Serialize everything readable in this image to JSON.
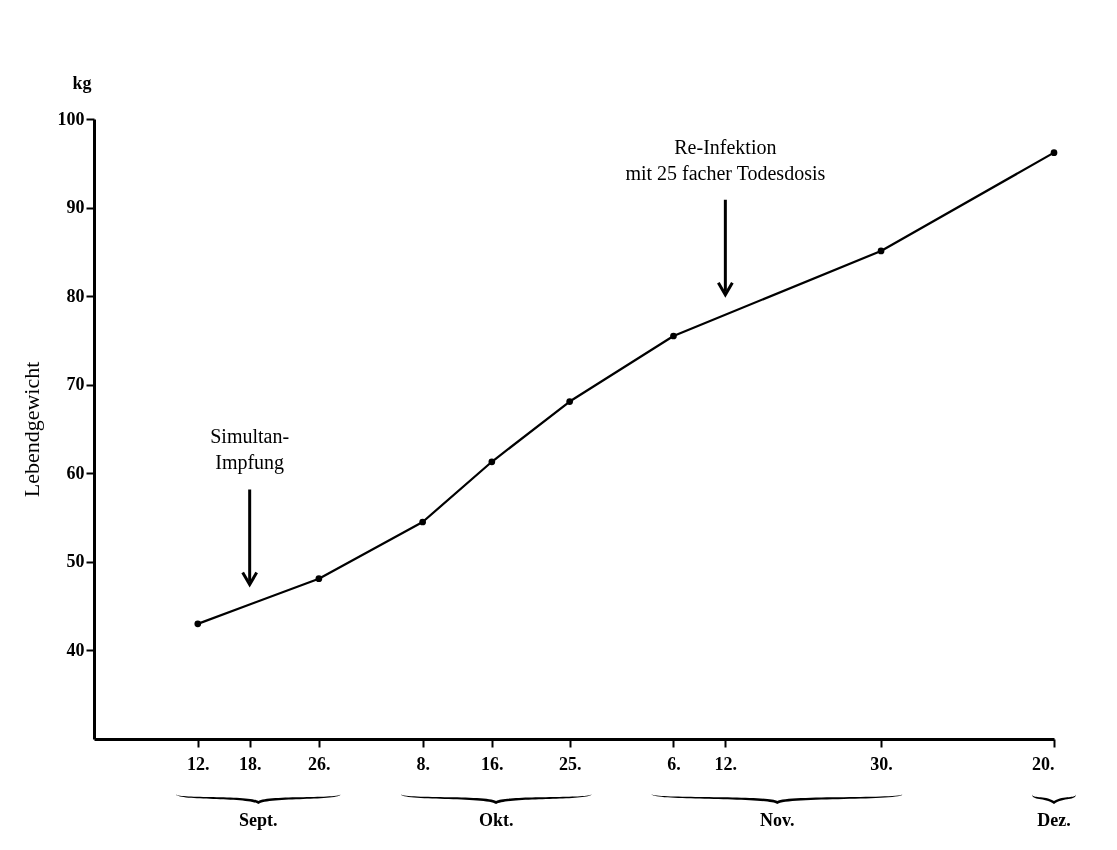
{
  "chart_data": {
    "type": "line",
    "ylabel": "Lebendgewicht",
    "x": [
      "--09-12",
      "--09-26",
      "--10-08",
      "--10-16",
      "--10-25",
      "--11-06",
      "--11-30",
      "--12-20"
    ],
    "series": [
      {
        "color": "#000000",
        "values": [
          43.0,
          48.1,
          54.5,
          61.3,
          68.1,
          75.5,
          85.1,
          96.2
        ]
      }
    ],
    "xlim": [
      "--08-31",
      "--12-20"
    ],
    "xticks": [
      {
        "value": "--09-12",
        "label": "12."
      },
      {
        "value": "--09-18",
        "label": "18."
      },
      {
        "value": "--09-26",
        "label": "26."
      },
      {
        "value": "--10-08",
        "label": "8."
      },
      {
        "value": "--10-16",
        "label": "16."
      },
      {
        "value": "--10-25",
        "label": "25."
      },
      {
        "value": "--11-06",
        "label": "6."
      },
      {
        "value": "--11-12",
        "label": "12."
      },
      {
        "value": "--11-30",
        "label": "30."
      },
      {
        "value": "--12-20",
        "label": "20."
      }
    ],
    "ylim": [
      30,
      100
    ],
    "yticks": [
      40,
      50,
      60,
      70,
      80,
      90,
      100
    ],
    "grid": false,
    "marker": "circle",
    "annotations": [
      "kg",
      "Simultan-\nImpfung",
      "Re-Infektion\nmit 25 facher Todesdosis",
      "Sept.",
      "Okt.",
      "Nov.",
      "Dez."
    ]
  }
}
